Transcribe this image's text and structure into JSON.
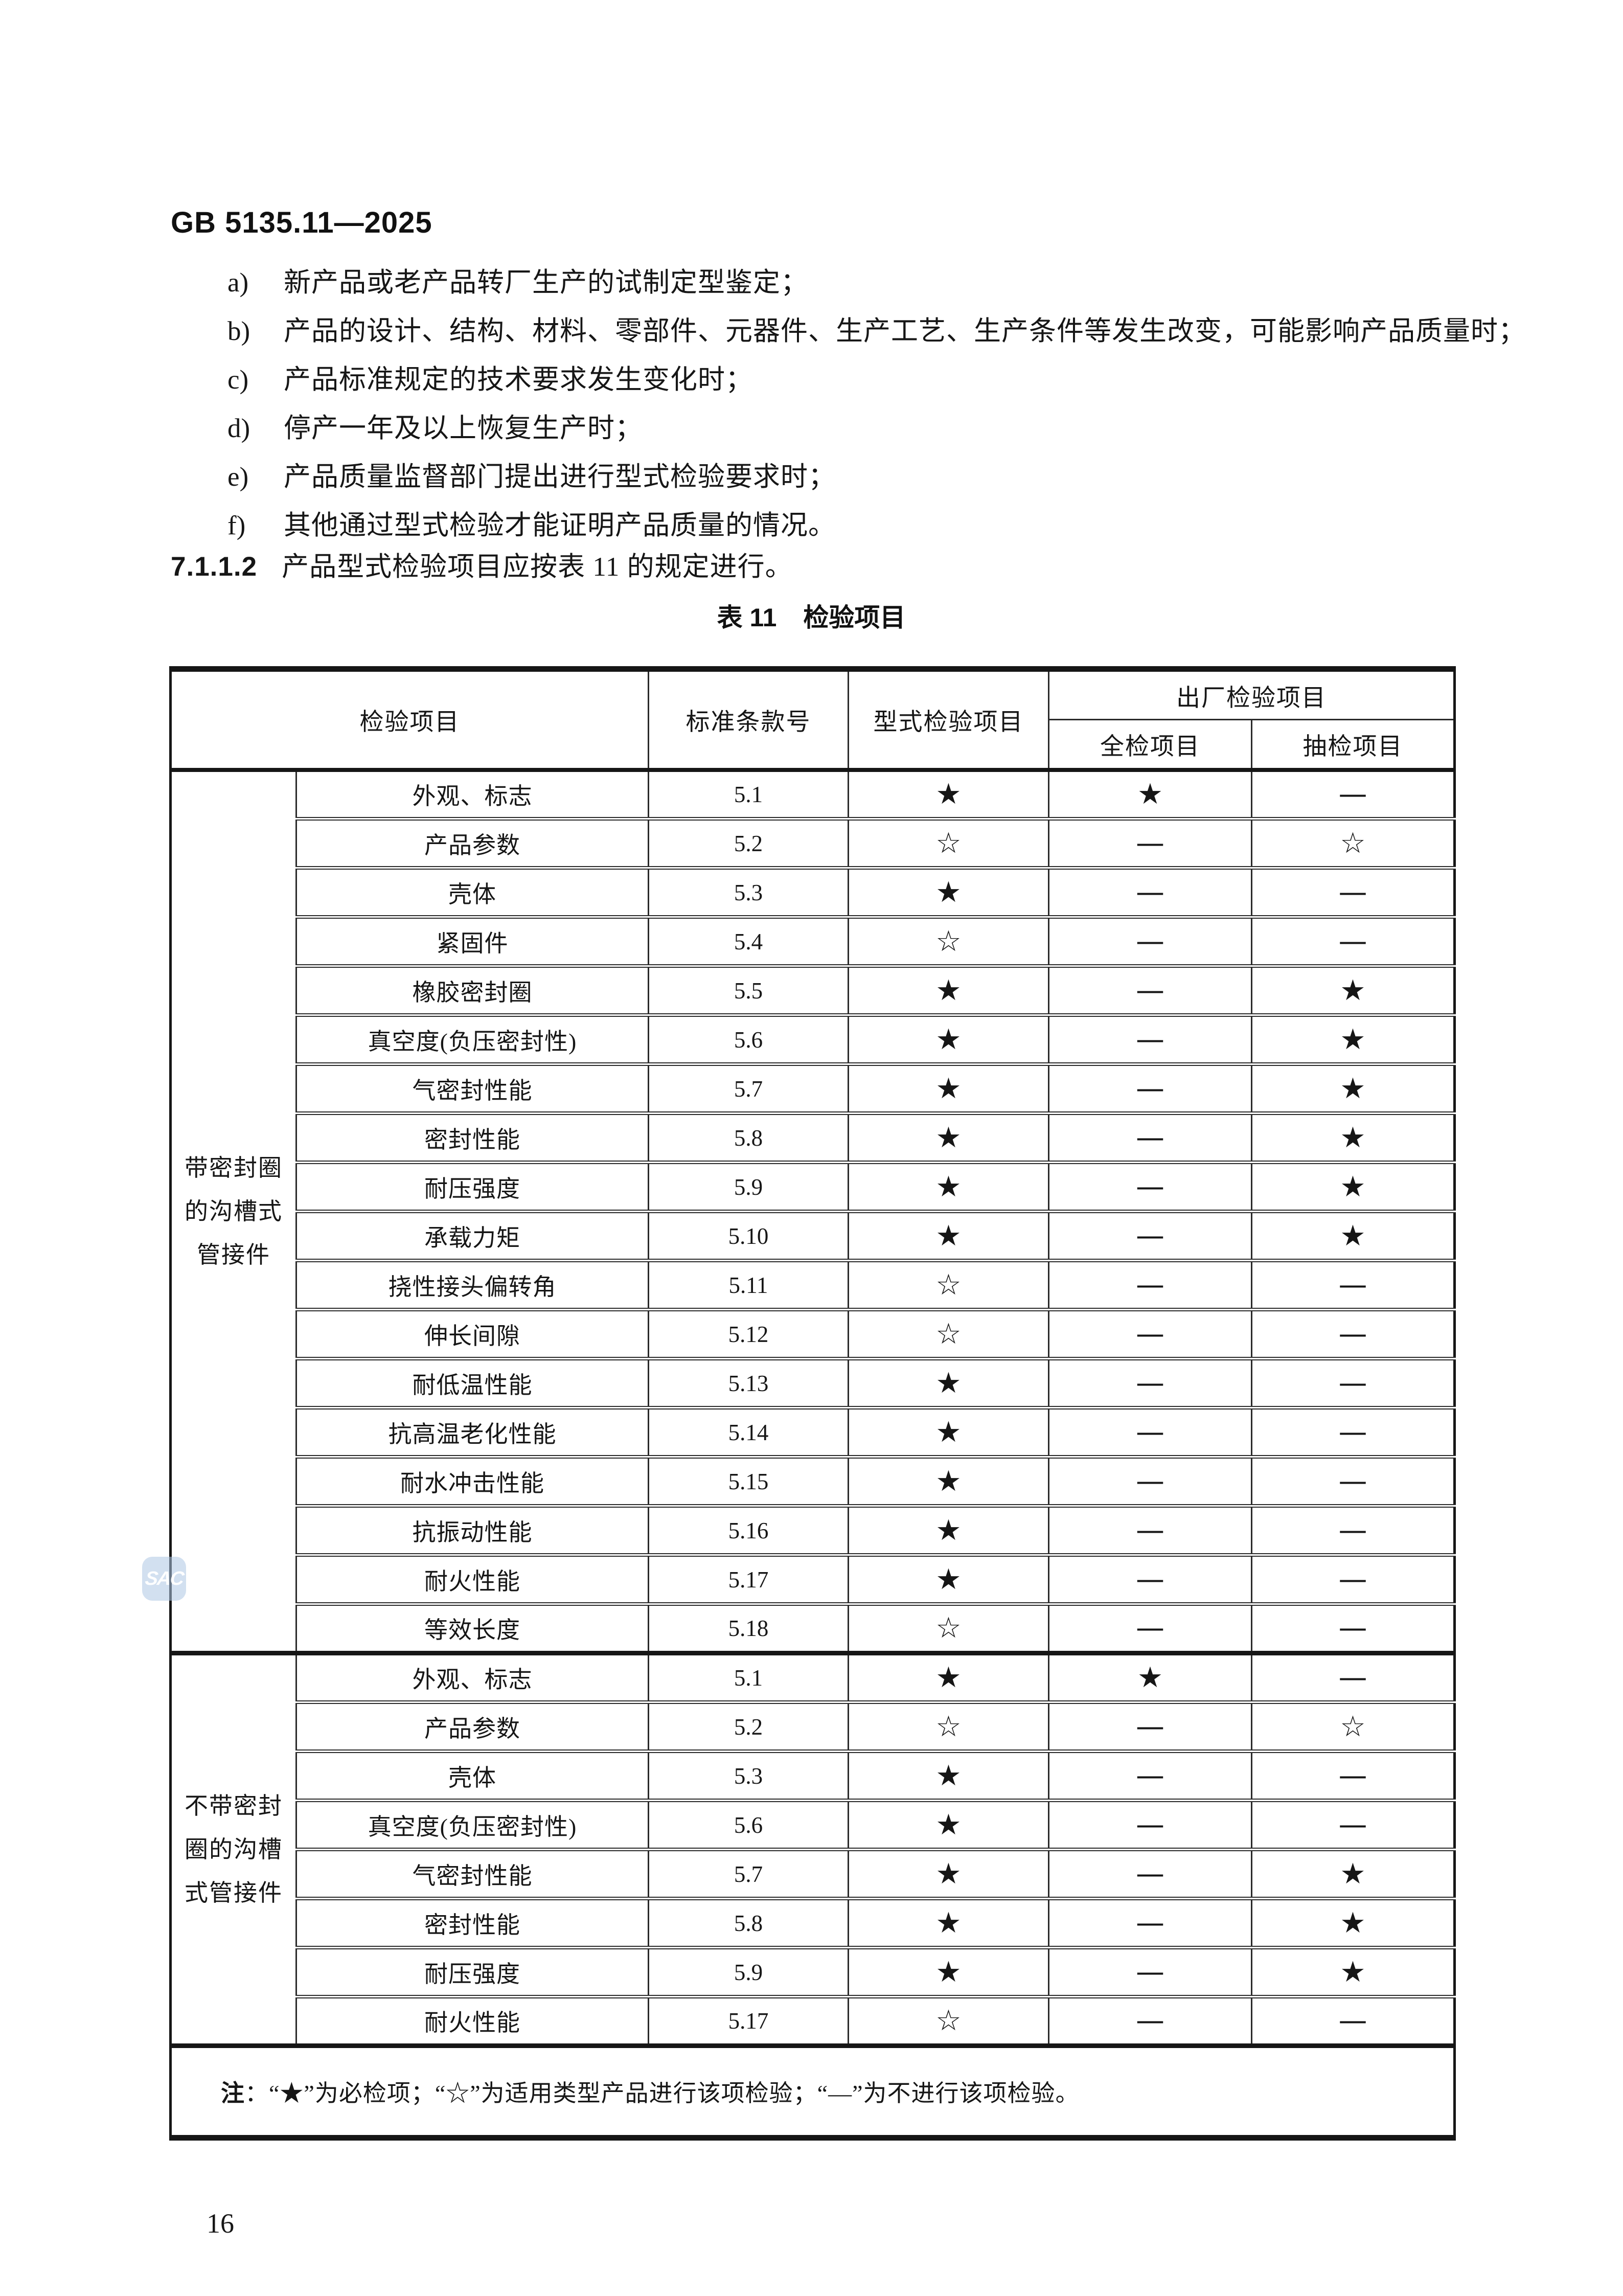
{
  "page": {
    "doc_code": "GB 5135.11—2025",
    "page_number": "16"
  },
  "clause_list": {
    "items": [
      {
        "label": "a)",
        "text": "新产品或老产品转厂生产的试制定型鉴定；"
      },
      {
        "label": "b)",
        "text": "产品的设计、结构、材料、零部件、元器件、生产工艺、生产条件等发生改变，可能影响产品质量时；"
      },
      {
        "label": "c)",
        "text": "产品标准规定的技术要求发生变化时；"
      },
      {
        "label": "d)",
        "text": "停产一年及以上恢复生产时；"
      },
      {
        "label": "e)",
        "text": "产品质量监督部门提出进行型式检验要求时；"
      },
      {
        "label": "f)",
        "text": "其他通过型式检验才能证明产品质量的情况。"
      }
    ]
  },
  "clause_712": {
    "number": "7.1.1.2",
    "text": "产品型式检验项目应按表 11 的规定进行。"
  },
  "table": {
    "caption_label": "表 11",
    "caption_title": "检验项目",
    "headers": {
      "item": "检验项目",
      "clause": "标准条款号",
      "type_test": "型式检验项目",
      "factory_test": "出厂检验项目",
      "full_test": "全检项目",
      "sampling_test": "抽检项目"
    },
    "symbols": {
      "required": "★",
      "applicable": "☆",
      "not_performed": "—"
    },
    "groups": [
      {
        "label": "带密封圈\n的沟槽式\n管接件",
        "rows": [
          [
            "外观、标志",
            "5.1",
            "★",
            "★",
            "—"
          ],
          [
            "产品参数",
            "5.2",
            "☆",
            "—",
            "☆"
          ],
          [
            "壳体",
            "5.3",
            "★",
            "—",
            "—"
          ],
          [
            "紧固件",
            "5.4",
            "☆",
            "—",
            "—"
          ],
          [
            "橡胶密封圈",
            "5.5",
            "★",
            "—",
            "★"
          ],
          [
            "真空度(负压密封性)",
            "5.6",
            "★",
            "—",
            "★"
          ],
          [
            "气密封性能",
            "5.7",
            "★",
            "—",
            "★"
          ],
          [
            "密封性能",
            "5.8",
            "★",
            "—",
            "★"
          ],
          [
            "耐压强度",
            "5.9",
            "★",
            "—",
            "★"
          ],
          [
            "承载力矩",
            "5.10",
            "★",
            "—",
            "★"
          ],
          [
            "挠性接头偏转角",
            "5.11",
            "☆",
            "—",
            "—"
          ],
          [
            "伸长间隙",
            "5.12",
            "☆",
            "—",
            "—"
          ],
          [
            "耐低温性能",
            "5.13",
            "★",
            "—",
            "—"
          ],
          [
            "抗高温老化性能",
            "5.14",
            "★",
            "—",
            "—"
          ],
          [
            "耐水冲击性能",
            "5.15",
            "★",
            "—",
            "—"
          ],
          [
            "抗振动性能",
            "5.16",
            "★",
            "—",
            "—"
          ],
          [
            "耐火性能",
            "5.17",
            "★",
            "—",
            "—"
          ],
          [
            "等效长度",
            "5.18",
            "☆",
            "—",
            "—"
          ]
        ]
      },
      {
        "label": "不带密封\n圈的沟槽\n式管接件",
        "rows": [
          [
            "外观、标志",
            "5.1",
            "★",
            "★",
            "—"
          ],
          [
            "产品参数",
            "5.2",
            "☆",
            "—",
            "☆"
          ],
          [
            "壳体",
            "5.3",
            "★",
            "—",
            "—"
          ],
          [
            "真空度(负压密封性)",
            "5.6",
            "★",
            "—",
            "—"
          ],
          [
            "气密封性能",
            "5.7",
            "★",
            "—",
            "★"
          ],
          [
            "密封性能",
            "5.8",
            "★",
            "—",
            "★"
          ],
          [
            "耐压强度",
            "5.9",
            "★",
            "—",
            "★"
          ],
          [
            "耐火性能",
            "5.17",
            "☆",
            "—",
            "—"
          ]
        ]
      }
    ],
    "note_label": "注",
    "note_text": "：“★”为必检项；“☆”为适用类型产品进行该项检验；“—”为不进行该项检验。"
  },
  "watermark": {
    "text": "SAC"
  }
}
